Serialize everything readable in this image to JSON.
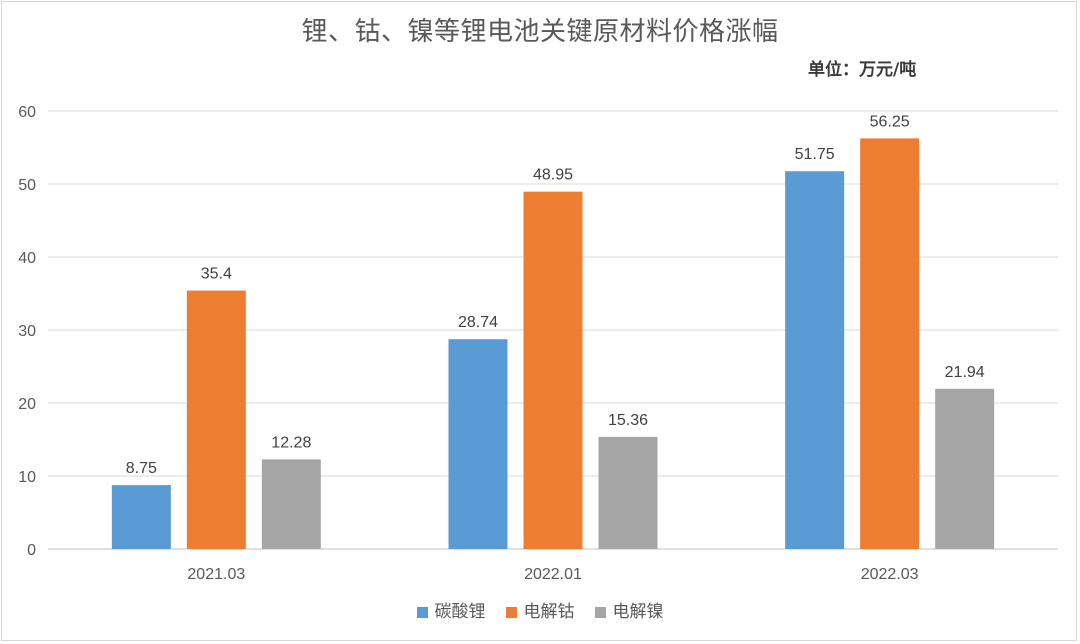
{
  "title": "锂、钴、镍等锂电池关键原材料价格涨幅",
  "unit_label": "单位：万元/吨",
  "chart_data": {
    "type": "bar",
    "categories": [
      "2021.03",
      "2022.01",
      "2022.03"
    ],
    "series": [
      {
        "name": "碳酸锂",
        "color": "#5b9bd5",
        "values": [
          8.75,
          28.74,
          51.75
        ],
        "labels": [
          "8.75",
          "28.74",
          "51.75"
        ]
      },
      {
        "name": "电解钴",
        "color": "#ed7d31",
        "values": [
          35.4,
          48.95,
          56.25
        ],
        "labels": [
          "35.4",
          "48.95",
          "56.25"
        ]
      },
      {
        "name": "电解镍",
        "color": "#a5a5a5",
        "values": [
          12.28,
          15.36,
          21.94
        ],
        "labels": [
          "12.28",
          "15.36",
          "21.94"
        ]
      }
    ],
    "ylim": [
      0,
      60
    ],
    "yticks": [
      "0",
      "10",
      "20",
      "30",
      "40",
      "50",
      "60"
    ],
    "grid": true,
    "legend_position": "bottom"
  }
}
